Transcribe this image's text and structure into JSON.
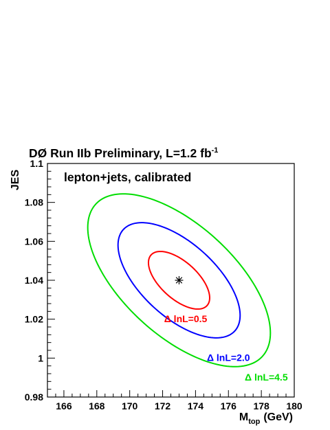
{
  "chart_data": {
    "type": "contour",
    "title": "DØ Run IIb Preliminary, L=1.2 fb",
    "title_superscript": "-1",
    "annotation": "lepton+jets, calibrated",
    "xlabel": "M",
    "xlabel_subscript": "top",
    "xlabel_unit": "(GeV)",
    "ylabel": "JES",
    "xlim": [
      165,
      180
    ],
    "ylim": [
      0.98,
      1.1
    ],
    "x_ticks": [
      166,
      168,
      170,
      172,
      174,
      176,
      178,
      180
    ],
    "y_ticks": [
      0.98,
      1,
      1.02,
      1.04,
      1.06,
      1.08,
      1.1
    ],
    "best_fit": {
      "x": 173.0,
      "y": 1.04
    },
    "contours": [
      {
        "label": "Δ lnL=0.5",
        "color": "#ff0000",
        "x_halfwidth": 1.86,
        "y_halfwidth": 0.0148,
        "rho": -0.61
      },
      {
        "label": "Δ lnL=2.0",
        "color": "#0000ff",
        "x_halfwidth": 3.71,
        "y_halfwidth": 0.0296,
        "rho": -0.61
      },
      {
        "label": "Δ lnL=4.5",
        "color": "#00dd00",
        "x_halfwidth": 5.55,
        "y_halfwidth": 0.0444,
        "rho": -0.61
      }
    ],
    "grid": false
  }
}
